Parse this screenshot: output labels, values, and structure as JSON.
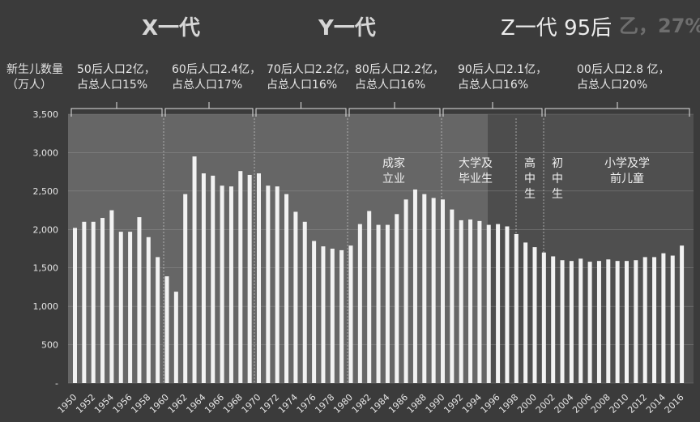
{
  "chart_data": {
    "type": "bar",
    "ylabel": "新生儿数量\n（万人）",
    "ylim": [
      0,
      3500
    ],
    "yticks": [
      "-",
      "500",
      "1,000",
      "1,500",
      "2,000",
      "2,500",
      "3,000",
      "3,500"
    ],
    "grid": true,
    "xtick_labels": [
      "1950",
      "1952",
      "1954",
      "1956",
      "1958",
      "1960",
      "1962",
      "1964",
      "1966",
      "1968",
      "1970",
      "1972",
      "1974",
      "1976",
      "1978",
      "1980",
      "1982",
      "1984",
      "1986",
      "1988",
      "1990",
      "1992",
      "1994",
      "1996",
      "1998",
      "2000",
      "2002",
      "2004",
      "2006",
      "2008",
      "2010",
      "2012",
      "2014",
      "2016"
    ],
    "years": [
      1950,
      1951,
      1952,
      1953,
      1954,
      1955,
      1956,
      1957,
      1958,
      1959,
      1960,
      1961,
      1962,
      1963,
      1964,
      1965,
      1966,
      1967,
      1968,
      1969,
      1970,
      1971,
      1972,
      1973,
      1974,
      1975,
      1976,
      1977,
      1978,
      1979,
      1980,
      1981,
      1982,
      1983,
      1984,
      1985,
      1986,
      1987,
      1988,
      1989,
      1990,
      1991,
      1992,
      1993,
      1994,
      1995,
      1996,
      1997,
      1998,
      1999,
      2000,
      2001,
      2002,
      2003,
      2004,
      2005,
      2006,
      2007,
      2008,
      2009,
      2010,
      2011,
      2012,
      2013,
      2014,
      2015,
      2016
    ],
    "values": [
      2020,
      2100,
      2100,
      2150,
      2250,
      1970,
      1970,
      2160,
      1900,
      1640,
      1390,
      1190,
      2460,
      2950,
      2730,
      2700,
      2570,
      2560,
      2760,
      2710,
      2730,
      2570,
      2560,
      2460,
      2230,
      2100,
      1850,
      1780,
      1750,
      1730,
      1790,
      2070,
      2240,
      2060,
      2060,
      2200,
      2390,
      2520,
      2460,
      2410,
      2390,
      2260,
      2120,
      2130,
      2110,
      2060,
      2070,
      2040,
      1940,
      1830,
      1770,
      1700,
      1650,
      1600,
      1590,
      1620,
      1580,
      1590,
      1610,
      1590,
      1590,
      1600,
      1640,
      1640,
      1690,
      1660,
      1790
    ]
  },
  "generations": [
    {
      "label": "X一代"
    },
    {
      "label": "Y一代"
    },
    {
      "label": "Z一代  95后"
    }
  ],
  "ghost_text": "乙，27%",
  "annotations": [
    {
      "line1": "50后人口2亿，",
      "line2": "占总人口15%"
    },
    {
      "line1": "60后人口2.4亿，",
      "line2": "占总人口17%"
    },
    {
      "line1": "70后人口2.2亿，",
      "line2": "占总人口16%"
    },
    {
      "line1": "80后人口2.2亿，",
      "line2": "占总人口16%"
    },
    {
      "line1": "90后人口2.1亿，",
      "line2": "占总人口16%"
    },
    {
      "line1": "00后人口2.8 亿，",
      "line2": "占总人口20%"
    }
  ],
  "life_stages": {
    "established": "成家\n立业",
    "college": "大学及\n毕业生",
    "high_school": "高\n中\n生",
    "junior_high": "初\n中\n生",
    "primary": "小学及学\n前儿童"
  }
}
